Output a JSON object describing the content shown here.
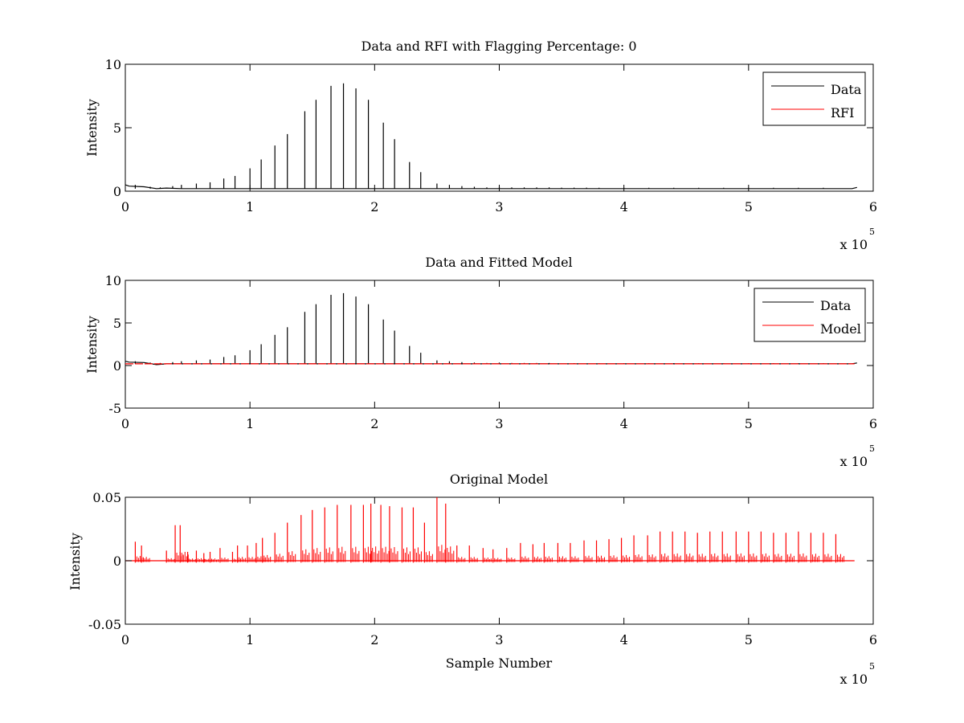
{
  "figure": {
    "background": "#ffffff",
    "colors": {
      "data": "#000000",
      "rfi": "#ff0000",
      "model": "#ff0000",
      "axes": "#000000"
    }
  },
  "chart_data": [
    {
      "type": "line",
      "title": "Data and RFI with Flagging Percentage: 0",
      "xlabel": "",
      "ylabel": "Intensity",
      "xlim": [
        0,
        600000
      ],
      "ylim": [
        0,
        10
      ],
      "xticks": [
        0,
        1,
        2,
        3,
        4,
        5,
        6
      ],
      "yticks": [
        0,
        5,
        10
      ],
      "x_multiplier": {
        "base": "x 10",
        "exponent": "5"
      },
      "grid": false,
      "legend": {
        "placement": "top-right",
        "entries": [
          "Data",
          "RFI"
        ]
      },
      "series": [
        {
          "name": "Data",
          "color": "#000000",
          "baseline": 0.2,
          "baseline_segments": [
            [
              0,
              0.5
            ],
            [
              3000,
              0.4
            ],
            [
              15000,
              0.35
            ],
            [
              25000,
              0.2
            ],
            [
              33000,
              0.25
            ],
            [
              45000,
              0.2
            ],
            [
              583000,
              0.2
            ],
            [
              587000,
              0.3
            ]
          ],
          "peaks": [
            [
              8000,
              0.5
            ],
            [
              20000,
              0.35
            ],
            [
              28000,
              0.3
            ],
            [
              38000,
              0.4
            ],
            [
              45000,
              0.5
            ],
            [
              57000,
              0.6
            ],
            [
              68000,
              0.7
            ],
            [
              79000,
              1.0
            ],
            [
              88000,
              1.2
            ],
            [
              100000,
              1.8
            ],
            [
              109000,
              2.5
            ],
            [
              120000,
              3.6
            ],
            [
              130000,
              4.5
            ],
            [
              144000,
              6.3
            ],
            [
              153000,
              7.2
            ],
            [
              165000,
              8.3
            ],
            [
              175000,
              8.5
            ],
            [
              185000,
              8.1
            ],
            [
              195000,
              7.2
            ],
            [
              207000,
              5.4
            ],
            [
              216000,
              4.1
            ],
            [
              228000,
              2.3
            ],
            [
              237000,
              1.5
            ],
            [
              250000,
              0.6
            ],
            [
              260000,
              0.5
            ],
            [
              270000,
              0.4
            ],
            [
              280000,
              0.35
            ],
            [
              290000,
              0.3
            ],
            [
              300000,
              0.35
            ],
            [
              310000,
              0.3
            ],
            [
              320000,
              0.3
            ],
            [
              330000,
              0.3
            ],
            [
              340000,
              0.3
            ],
            [
              350000,
              0.28
            ],
            [
              360000,
              0.28
            ],
            [
              370000,
              0.28
            ],
            [
              380000,
              0.27
            ],
            [
              400000,
              0.27
            ],
            [
              420000,
              0.27
            ],
            [
              440000,
              0.27
            ],
            [
              460000,
              0.27
            ],
            [
              480000,
              0.27
            ],
            [
              500000,
              0.27
            ],
            [
              520000,
              0.27
            ],
            [
              540000,
              0.27
            ],
            [
              560000,
              0.27
            ]
          ]
        },
        {
          "name": "RFI",
          "color": "#ff0000",
          "values": []
        }
      ]
    },
    {
      "type": "line",
      "title": "Data and Fitted Model",
      "xlabel": "",
      "ylabel": "Intensity",
      "xlim": [
        0,
        600000
      ],
      "ylim": [
        -5,
        10
      ],
      "xticks": [
        0,
        1,
        2,
        3,
        4,
        5,
        6
      ],
      "yticks": [
        -5,
        0,
        5,
        10
      ],
      "x_multiplier": {
        "base": "x 10",
        "exponent": "5"
      },
      "grid": false,
      "legend": {
        "placement": "top-right",
        "entries": [
          "Data",
          "Model"
        ]
      },
      "series": [
        {
          "name": "Data",
          "color": "#000000",
          "baseline": 0.2,
          "baseline_segments": [
            [
              0,
              0.5
            ],
            [
              3000,
              0.4
            ],
            [
              15000,
              0.35
            ],
            [
              25000,
              0.1
            ],
            [
              33000,
              0.2
            ],
            [
              45000,
              0.2
            ],
            [
              583000,
              0.2
            ],
            [
              587000,
              0.3
            ]
          ],
          "peaks": [
            [
              8000,
              0.5
            ],
            [
              20000,
              0.35
            ],
            [
              28000,
              0.3
            ],
            [
              38000,
              0.4
            ],
            [
              45000,
              0.5
            ],
            [
              57000,
              0.6
            ],
            [
              68000,
              0.7
            ],
            [
              79000,
              1.0
            ],
            [
              88000,
              1.2
            ],
            [
              100000,
              1.8
            ],
            [
              109000,
              2.5
            ],
            [
              120000,
              3.6
            ],
            [
              130000,
              4.5
            ],
            [
              144000,
              6.3
            ],
            [
              153000,
              7.2
            ],
            [
              165000,
              8.3
            ],
            [
              175000,
              8.5
            ],
            [
              185000,
              8.1
            ],
            [
              195000,
              7.2
            ],
            [
              207000,
              5.4
            ],
            [
              216000,
              4.1
            ],
            [
              228000,
              2.3
            ],
            [
              237000,
              1.5
            ],
            [
              250000,
              0.6
            ],
            [
              260000,
              0.5
            ],
            [
              270000,
              0.4
            ],
            [
              280000,
              0.35
            ],
            [
              290000,
              0.3
            ],
            [
              300000,
              0.35
            ],
            [
              310000,
              0.3
            ],
            [
              320000,
              0.3
            ],
            [
              330000,
              0.3
            ],
            [
              340000,
              0.3
            ],
            [
              360000,
              0.28
            ],
            [
              380000,
              0.27
            ],
            [
              400000,
              0.27
            ],
            [
              420000,
              0.27
            ],
            [
              440000,
              0.27
            ],
            [
              460000,
              0.27
            ],
            [
              480000,
              0.27
            ],
            [
              500000,
              0.27
            ],
            [
              520000,
              0.27
            ],
            [
              540000,
              0.27
            ],
            [
              560000,
              0.27
            ]
          ]
        },
        {
          "name": "Model",
          "color": "#ff0000",
          "baseline": 0.2,
          "x_range": [
            0,
            585000
          ]
        }
      ]
    },
    {
      "type": "line",
      "title": "Original Model",
      "xlabel": "Sample Number",
      "ylabel": "Intensity",
      "xlim": [
        0,
        600000
      ],
      "ylim": [
        -0.05,
        0.05
      ],
      "xticks": [
        0,
        1,
        2,
        3,
        4,
        5,
        6
      ],
      "yticks": [
        -0.05,
        0,
        0.05
      ],
      "ytick_labels": [
        "-0.05",
        "0",
        "0.05"
      ],
      "x_multiplier": {
        "base": "x 10",
        "exponent": "5"
      },
      "grid": false,
      "legend": null,
      "series": [
        {
          "name": "",
          "color": "#ff0000",
          "baseline": 0,
          "x_range": [
            0,
            585000
          ],
          "spikes": [
            [
              8000,
              0.015
            ],
            [
              13000,
              0.012
            ],
            [
              33000,
              0.008
            ],
            [
              40000,
              0.028
            ],
            [
              44000,
              0.028
            ],
            [
              50000,
              0.007
            ],
            [
              57000,
              0.008
            ],
            [
              63000,
              0.006
            ],
            [
              68000,
              0.007
            ],
            [
              76000,
              0.01
            ],
            [
              86000,
              0.007
            ],
            [
              90000,
              0.012
            ],
            [
              98000,
              0.012
            ],
            [
              105000,
              0.014
            ],
            [
              110000,
              0.018
            ],
            [
              120000,
              0.022
            ],
            [
              130000,
              0.03
            ],
            [
              141000,
              0.036
            ],
            [
              150000,
              0.04
            ],
            [
              160000,
              0.042
            ],
            [
              170000,
              0.044
            ],
            [
              181000,
              0.044
            ],
            [
              191000,
              0.044
            ],
            [
              197000,
              0.045
            ],
            [
              205000,
              0.044
            ],
            [
              212000,
              0.043
            ],
            [
              222000,
              0.042
            ],
            [
              231000,
              0.042
            ],
            [
              240000,
              0.03
            ],
            [
              250000,
              0.05
            ],
            [
              257000,
              0.045
            ],
            [
              266000,
              0.012
            ],
            [
              276000,
              0.012
            ],
            [
              287000,
              0.01
            ],
            [
              295000,
              0.009
            ],
            [
              306000,
              0.01
            ],
            [
              317000,
              0.014
            ],
            [
              327000,
              0.013
            ],
            [
              336000,
              0.014
            ],
            [
              347000,
              0.014
            ],
            [
              357000,
              0.014
            ],
            [
              368000,
              0.016
            ],
            [
              378000,
              0.016
            ],
            [
              388000,
              0.017
            ],
            [
              398000,
              0.018
            ],
            [
              408000,
              0.02
            ],
            [
              419000,
              0.02
            ],
            [
              429000,
              0.023
            ],
            [
              439000,
              0.023
            ],
            [
              449000,
              0.023
            ],
            [
              459000,
              0.022
            ],
            [
              469000,
              0.023
            ],
            [
              479000,
              0.023
            ],
            [
              490000,
              0.023
            ],
            [
              500000,
              0.023
            ],
            [
              510000,
              0.023
            ],
            [
              520000,
              0.022
            ],
            [
              530000,
              0.022
            ],
            [
              540000,
              0.023
            ],
            [
              550000,
              0.022
            ],
            [
              560000,
              0.022
            ],
            [
              570000,
              0.021
            ]
          ]
        }
      ]
    }
  ]
}
